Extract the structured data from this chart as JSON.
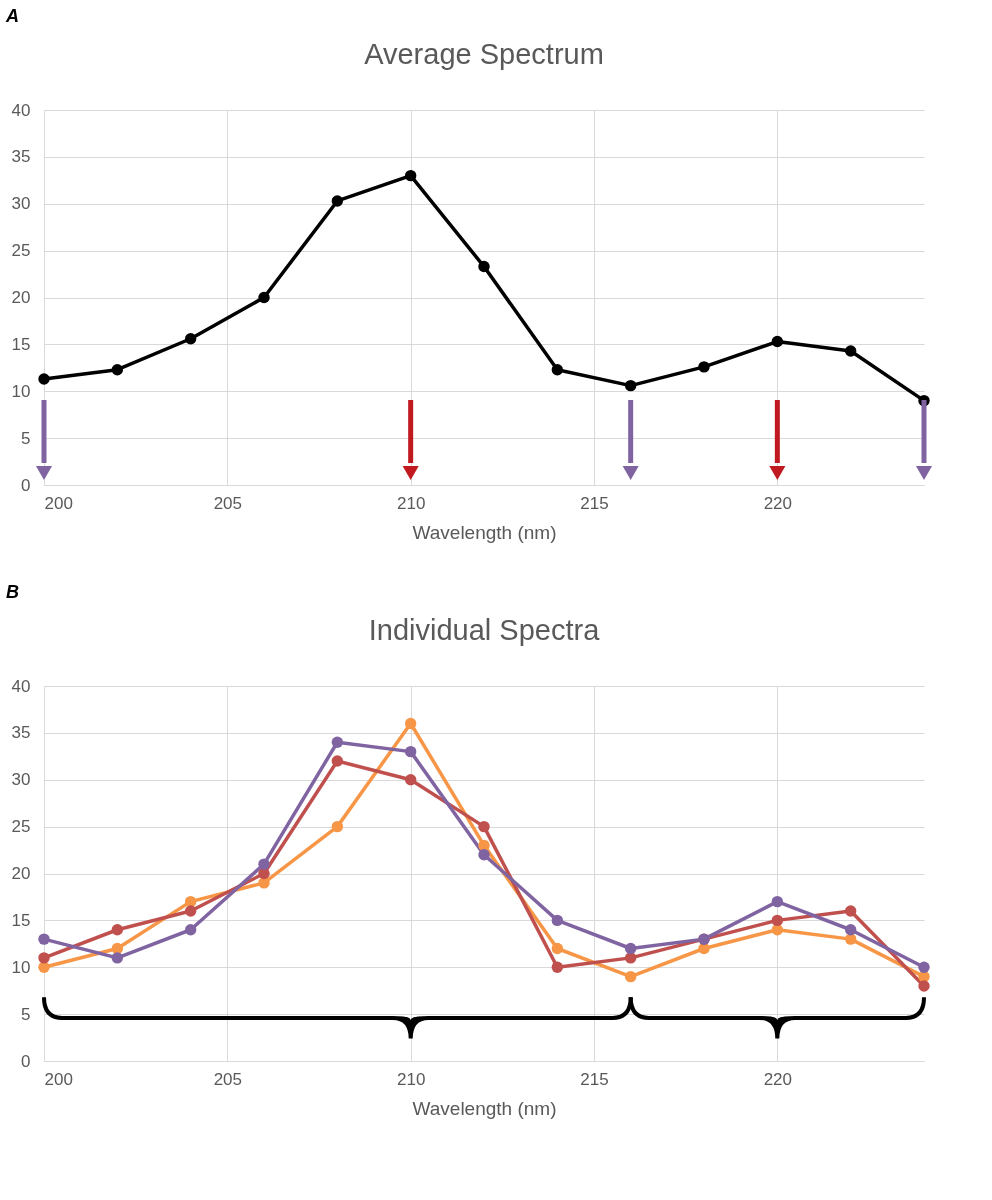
{
  "chart_data": [
    {
      "type": "line",
      "title": "Average Spectrum",
      "xlabel": "Wavelength (nm)",
      "annotations": [
        "A"
      ],
      "x": [
        200,
        202,
        204,
        206,
        208,
        210,
        212,
        214,
        216,
        218,
        220,
        222,
        224
      ],
      "series": [
        {
          "color": "#000000",
          "values": [
            11.3,
            12.3,
            15.6,
            20,
            30.3,
            33,
            23.3,
            12.3,
            10.6,
            12.6,
            15.3,
            14.3,
            9
          ]
        }
      ],
      "xlim": [
        200,
        224
      ],
      "xticks": [
        200,
        205,
        210,
        215,
        220
      ],
      "ylim": [
        0,
        40
      ],
      "yticks": [
        0,
        5,
        10,
        15,
        20,
        25,
        30,
        35,
        40
      ],
      "grid": true,
      "marker": "circle",
      "line_style": "solid",
      "ref_lines": [
        {
          "axis": "x",
          "value": 200,
          "color": "#8064a2"
        },
        {
          "axis": "x",
          "value": 210,
          "color": "#c0191f"
        },
        {
          "axis": "x",
          "value": 216,
          "color": "#8064a2"
        },
        {
          "axis": "x",
          "value": 220,
          "color": "#c0191f"
        },
        {
          "axis": "x",
          "value": 224,
          "color": "#8064a2"
        }
      ]
    },
    {
      "type": "line",
      "title": "Individual Spectra",
      "xlabel": "Wavelength (nm)",
      "annotations": [
        "B"
      ],
      "x": [
        200,
        202,
        204,
        206,
        208,
        210,
        212,
        214,
        216,
        218,
        220,
        222,
        224
      ],
      "series": [
        {
          "color": "#f79646",
          "values": [
            10,
            12,
            17,
            19,
            25,
            36,
            23,
            12,
            9,
            12,
            14,
            13,
            9
          ]
        },
        {
          "color": "#c0504d",
          "values": [
            11,
            14,
            16,
            20,
            32,
            30,
            25,
            10,
            11,
            13,
            15,
            16,
            8
          ]
        },
        {
          "color": "#8064a2",
          "values": [
            13,
            11,
            14,
            21,
            34,
            33,
            22,
            15,
            12,
            13,
            17,
            14,
            10
          ]
        }
      ],
      "xlim": [
        200,
        224
      ],
      "xticks": [
        200,
        205,
        210,
        215,
        220
      ],
      "ylim": [
        0,
        40
      ],
      "yticks": [
        0,
        5,
        10,
        15,
        20,
        25,
        30,
        35,
        40
      ],
      "grid": true,
      "marker": "circle",
      "line_style": "solid"
    }
  ]
}
